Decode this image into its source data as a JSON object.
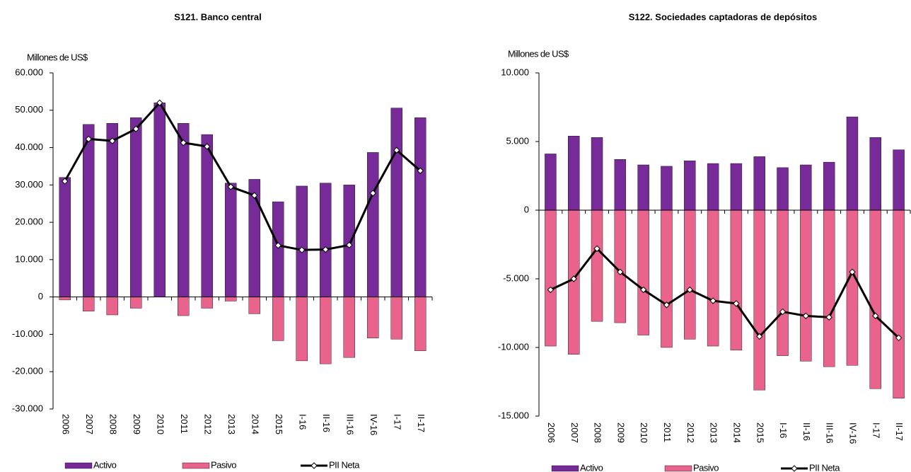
{
  "chart_data": [
    {
      "type": "bar",
      "title": "S121. Banco central",
      "y_label": "Millones de US$",
      "categories": [
        "2006",
        "2007",
        "2008",
        "2009",
        "2010",
        "2011",
        "2012",
        "2013",
        "2014",
        "2015",
        "I-16",
        "II-16",
        "III-16",
        "IV-16",
        "I-17",
        "II-17"
      ],
      "ylim": [
        -30000,
        60000
      ],
      "yticks": [
        {
          "value": -30000,
          "label": "-30.000"
        },
        {
          "value": -20000,
          "label": "-20.000"
        },
        {
          "value": -10000,
          "label": "-10.000"
        },
        0,
        {
          "value": 10000,
          "label": "10.000"
        },
        {
          "value": 20000,
          "label": "20.000"
        },
        {
          "value": 30000,
          "label": "30.000"
        },
        {
          "value": 40000,
          "label": "40.000"
        },
        {
          "value": 50000,
          "label": "50.000"
        },
        {
          "value": 60000,
          "label": "60.000"
        }
      ],
      "series": [
        {
          "name": "Activo",
          "type": "bar",
          "color": "#772b98",
          "values": [
            32000,
            46200,
            46500,
            48000,
            52000,
            46500,
            43500,
            30500,
            31500,
            25500,
            29700,
            30500,
            30000,
            38700,
            50600,
            48000
          ]
        },
        {
          "name": "Pasivo",
          "type": "bar",
          "color": "#e8648c",
          "values": [
            -800,
            -3800,
            -4800,
            -3000,
            0,
            -5000,
            -3000,
            -1100,
            -4500,
            -11700,
            -17100,
            -17900,
            -16200,
            -11000,
            -11300,
            -14400
          ]
        },
        {
          "name": "PII Neta",
          "type": "line",
          "color": "#000000",
          "values": [
            31000,
            42300,
            41800,
            45000,
            52000,
            41300,
            40300,
            29500,
            27200,
            13800,
            12600,
            12700,
            13900,
            27800,
            39300,
            33800
          ]
        }
      ]
    },
    {
      "type": "bar",
      "title": "S122. Sociedades captadoras de depósitos",
      "y_label": "Millones de US$",
      "categories": [
        "2006",
        "2007",
        "2008",
        "2009",
        "2010",
        "2011",
        "2012",
        "2013",
        "2014",
        "2015",
        "I-16",
        "II-16",
        "III-16",
        "IV-16",
        "I-17",
        "II-17"
      ],
      "ylim": [
        -15000,
        10000
      ],
      "yticks": [
        {
          "value": -15000,
          "label": "-15.000"
        },
        {
          "value": -10000,
          "label": "-10.000"
        },
        {
          "value": -5000,
          "label": "-5.000"
        },
        0,
        {
          "value": 5000,
          "label": "5.000"
        },
        {
          "value": 10000,
          "label": "10.000"
        }
      ],
      "series": [
        {
          "name": "Activo",
          "type": "bar",
          "color": "#772b98",
          "values": [
            4100,
            5400,
            5300,
            3700,
            3300,
            3200,
            3600,
            3400,
            3400,
            3900,
            3100,
            3300,
            3500,
            6800,
            5300,
            4400
          ]
        },
        {
          "name": "Pasivo",
          "type": "bar",
          "color": "#e8648c",
          "values": [
            -9900,
            -10500,
            -8100,
            -8200,
            -9100,
            -10000,
            -9400,
            -9900,
            -10200,
            -13100,
            -10600,
            -11000,
            -11400,
            -11300,
            -13000,
            -13700
          ]
        },
        {
          "name": "PII Neta",
          "type": "line",
          "color": "#000000",
          "values": [
            -5800,
            -5000,
            -2800,
            -4500,
            -5800,
            -6900,
            -5800,
            -6600,
            -6800,
            -9200,
            -7400,
            -7700,
            -7800,
            -4500,
            -7700,
            -9300
          ]
        }
      ]
    }
  ]
}
